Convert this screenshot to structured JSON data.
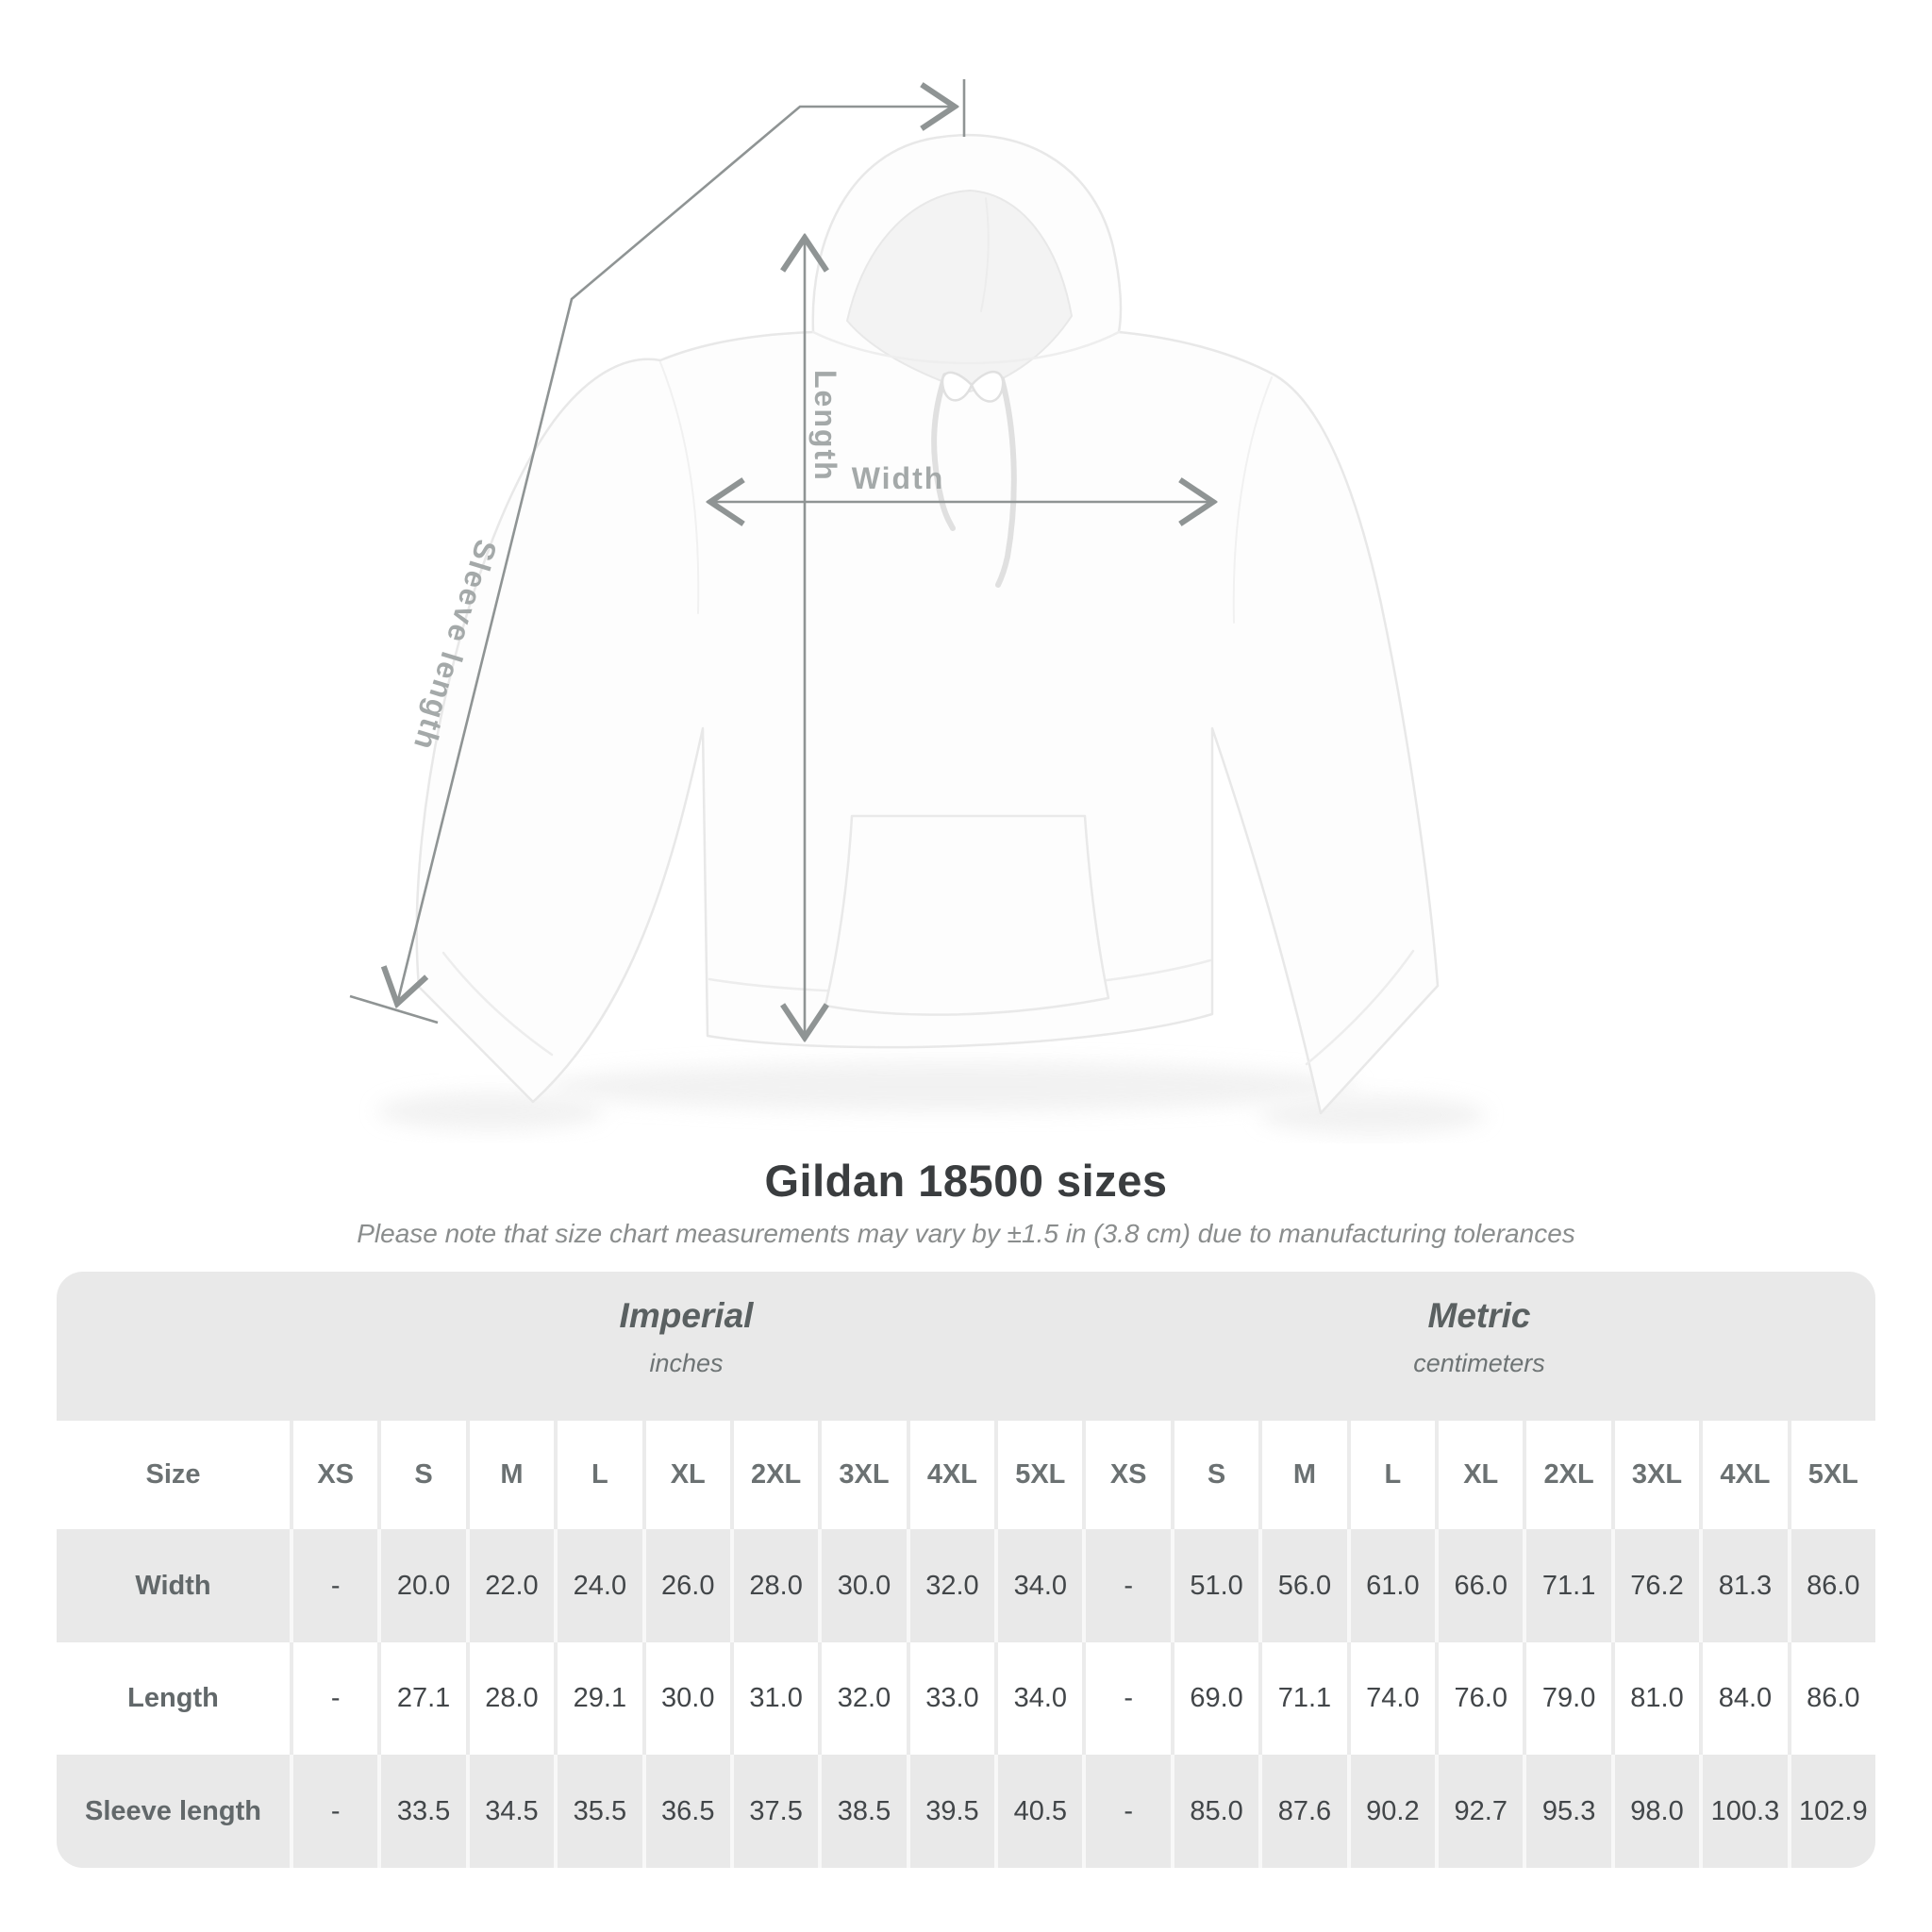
{
  "diagram": {
    "labels": {
      "sleeve_length": "Sleeve length",
      "length": "Length",
      "width": "Width"
    },
    "line_color": "#8f9494",
    "label_color": "#a4a9a9"
  },
  "heading": {
    "title": "Gildan 18500 sizes",
    "subtitle": "Please note that size chart measurements may vary by ±1.5 in (3.8 cm) due to manufacturing tolerances"
  },
  "size_table": {
    "corner_label": "Size",
    "groups": [
      {
        "label": "Imperial",
        "unit": "inches"
      },
      {
        "label": "Metric",
        "unit": "centimeters"
      }
    ],
    "sizes": [
      "XS",
      "S",
      "M",
      "L",
      "XL",
      "2XL",
      "3XL",
      "4XL",
      "5XL"
    ],
    "rows": [
      {
        "label": "Width",
        "imperial": [
          "-",
          "20.0",
          "22.0",
          "24.0",
          "26.0",
          "28.0",
          "30.0",
          "32.0",
          "34.0"
        ],
        "metric": [
          "-",
          "51.0",
          "56.0",
          "61.0",
          "66.0",
          "71.1",
          "76.2",
          "81.3",
          "86.0"
        ]
      },
      {
        "label": "Length",
        "imperial": [
          "-",
          "27.1",
          "28.0",
          "29.1",
          "30.0",
          "31.0",
          "32.0",
          "33.0",
          "34.0"
        ],
        "metric": [
          "-",
          "69.0",
          "71.1",
          "74.0",
          "76.0",
          "79.0",
          "81.0",
          "84.0",
          "86.0"
        ]
      },
      {
        "label": "Sleeve length",
        "imperial": [
          "-",
          "33.5",
          "34.5",
          "35.5",
          "36.5",
          "37.5",
          "38.5",
          "39.5",
          "40.5"
        ],
        "metric": [
          "-",
          "85.0",
          "87.6",
          "90.2",
          "92.7",
          "95.3",
          "98.0",
          "100.3",
          "102.9"
        ]
      }
    ]
  },
  "chart_data": {
    "type": "table",
    "title": "Gildan 18500 sizes",
    "note": "Please note that size chart measurements may vary by ±1.5 in (3.8 cm) due to manufacturing tolerances",
    "column_groups": [
      "Imperial (inches)",
      "Metric (centimeters)"
    ],
    "sizes": [
      "XS",
      "S",
      "M",
      "L",
      "XL",
      "2XL",
      "3XL",
      "4XL",
      "5XL"
    ],
    "measurements": [
      {
        "name": "Width",
        "imperial_inches": [
          null,
          20.0,
          22.0,
          24.0,
          26.0,
          28.0,
          30.0,
          32.0,
          34.0
        ],
        "metric_cm": [
          null,
          51.0,
          56.0,
          61.0,
          66.0,
          71.1,
          76.2,
          81.3,
          86.0
        ]
      },
      {
        "name": "Length",
        "imperial_inches": [
          null,
          27.1,
          28.0,
          29.1,
          30.0,
          31.0,
          32.0,
          33.0,
          34.0
        ],
        "metric_cm": [
          null,
          69.0,
          71.1,
          74.0,
          76.0,
          79.0,
          81.0,
          84.0,
          86.0
        ]
      },
      {
        "name": "Sleeve length",
        "imperial_inches": [
          null,
          33.5,
          34.5,
          35.5,
          36.5,
          37.5,
          38.5,
          39.5,
          40.5
        ],
        "metric_cm": [
          null,
          85.0,
          87.6,
          90.2,
          92.7,
          95.3,
          98.0,
          100.3,
          102.9
        ]
      }
    ]
  }
}
